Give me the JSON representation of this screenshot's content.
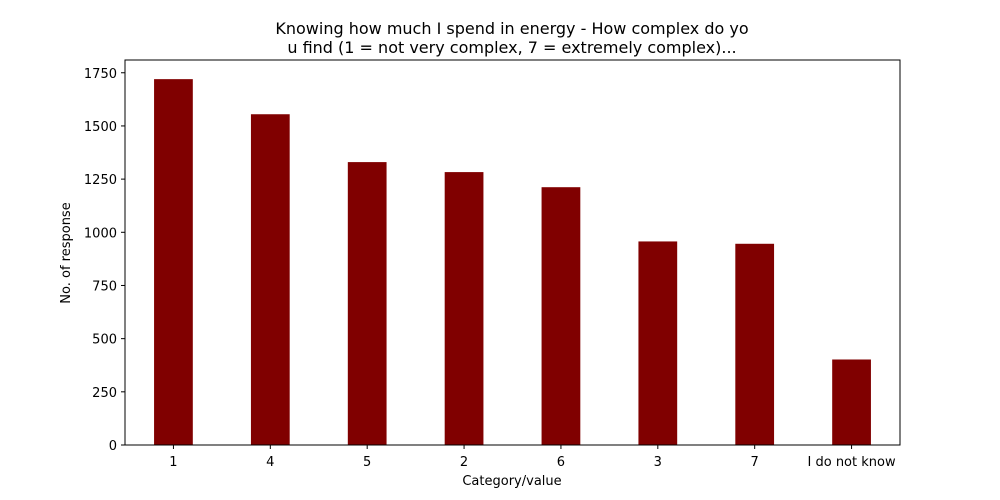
{
  "chart_data": {
    "type": "bar",
    "title_lines": [
      "Knowing how much I spend in energy - How complex do yo",
      "u find (1 = not very complex, 7 = extremely complex)..."
    ],
    "xlabel": "Category/value",
    "ylabel": "No. of response",
    "categories": [
      "1",
      "4",
      "5",
      "2",
      "6",
      "3",
      "7",
      "I do not know"
    ],
    "values": [
      1720,
      1555,
      1330,
      1283,
      1212,
      957,
      946,
      402
    ],
    "ylim": [
      0,
      1810
    ],
    "yticks": [
      0,
      250,
      500,
      750,
      1000,
      1250,
      1500,
      1750
    ],
    "bar_color": "#800000",
    "grid": false
  }
}
